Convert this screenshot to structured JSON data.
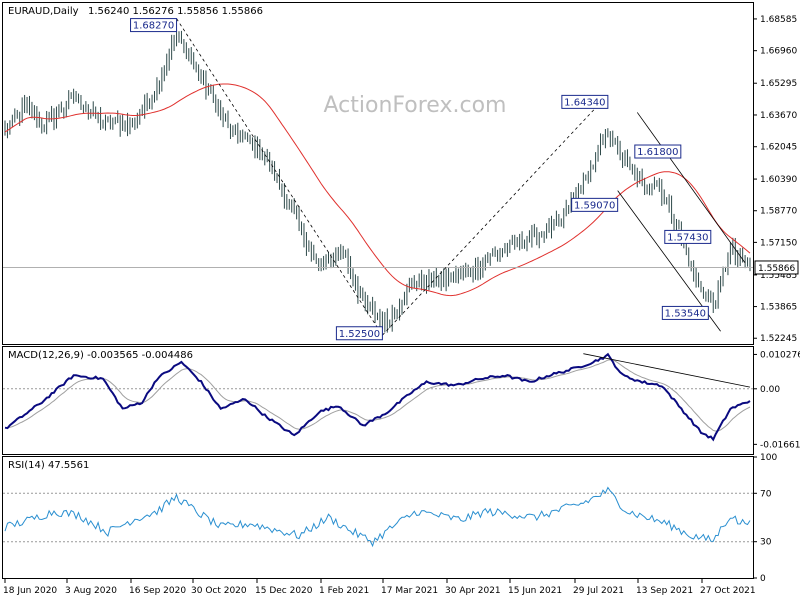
{
  "chart_data": [
    {
      "type": "candlestick",
      "header": "EURAUD,Daily",
      "ohlc_text": "1.56240 1.56276 1.55856 1.55866",
      "watermark": "ActionForex.com",
      "ylim": [
        1.5195,
        1.694
      ],
      "y_ticks": [
        "1.68585",
        "1.66960",
        "1.65295",
        "1.63670",
        "1.62045",
        "1.60390",
        "1.58770",
        "1.57150",
        "1.55485",
        "1.53865",
        "1.52245"
      ],
      "y_tick_values": [
        1.68585,
        1.6696,
        1.65295,
        1.6367,
        1.62045,
        1.6039,
        1.5877,
        1.5715,
        1.55485,
        1.53865,
        1.52245
      ],
      "x_ticks": [
        "18 Jun 2020",
        "3 Aug 2020",
        "16 Sep 2020",
        "30 Oct 2020",
        "15 Dec 2020",
        "1 Feb 2021",
        "17 Mar 2021",
        "30 Apr 2021",
        "15 Jun 2021",
        "29 Jul 2021",
        "13 Sep 2021",
        "27 Oct 2021"
      ],
      "last_price": "1.55866",
      "last_price_value": 1.55866,
      "anchors": [
        {
          "i": 0,
          "v": 1.628
        },
        {
          "i": 8,
          "v": 1.641
        },
        {
          "i": 16,
          "v": 1.631
        },
        {
          "i": 28,
          "v": 1.646
        },
        {
          "i": 40,
          "v": 1.633
        },
        {
          "i": 52,
          "v": 1.632
        },
        {
          "i": 62,
          "v": 1.651
        },
        {
          "i": 70,
          "v": 1.678
        },
        {
          "i": 78,
          "v": 1.66
        },
        {
          "i": 92,
          "v": 1.628
        },
        {
          "i": 104,
          "v": 1.62
        },
        {
          "i": 116,
          "v": 1.591
        },
        {
          "i": 128,
          "v": 1.558
        },
        {
          "i": 138,
          "v": 1.568
        },
        {
          "i": 146,
          "v": 1.54
        },
        {
          "i": 156,
          "v": 1.53
        },
        {
          "i": 166,
          "v": 1.551
        },
        {
          "i": 178,
          "v": 1.552
        },
        {
          "i": 190,
          "v": 1.556
        },
        {
          "i": 200,
          "v": 1.566
        },
        {
          "i": 214,
          "v": 1.574
        },
        {
          "i": 226,
          "v": 1.581
        },
        {
          "i": 238,
          "v": 1.606
        },
        {
          "i": 246,
          "v": 1.629
        },
        {
          "i": 252,
          "v": 1.614
        },
        {
          "i": 260,
          "v": 1.601
        },
        {
          "i": 266,
          "v": 1.602
        },
        {
          "i": 274,
          "v": 1.581
        },
        {
          "i": 282,
          "v": 1.552
        },
        {
          "i": 289,
          "v": 1.539
        },
        {
          "i": 296,
          "v": 1.568
        },
        {
          "i": 300,
          "v": 1.562
        },
        {
          "i": 304,
          "v": 1.5587
        }
      ],
      "annotations": [
        {
          "text": "1.68270",
          "i": 70,
          "v": 1.6827,
          "pos": "left"
        },
        {
          "text": "1.52500",
          "i": 154,
          "v": 1.525,
          "pos": "left"
        },
        {
          "text": "1.64340",
          "i": 246,
          "v": 1.6434,
          "pos": "left"
        },
        {
          "text": "1.61800",
          "i": 257,
          "v": 1.618,
          "pos": "right"
        },
        {
          "text": "1.59070",
          "i": 250,
          "v": 1.5907,
          "pos": "left"
        },
        {
          "text": "1.57430",
          "i": 288,
          "v": 1.5743,
          "pos": "left"
        },
        {
          "text": "1.53540",
          "i": 287,
          "v": 1.5354,
          "pos": "left"
        }
      ],
      "trendlines": [
        {
          "from": {
            "i": 70,
            "v": 1.686
          },
          "to": {
            "i": 154,
            "v": 1.524
          },
          "style": "dashed"
        },
        {
          "from": {
            "i": 154,
            "v": 1.524
          },
          "to": {
            "i": 246,
            "v": 1.647
          },
          "style": "dashed"
        },
        {
          "from": {
            "i": 258,
            "v": 1.638
          },
          "to": {
            "i": 302,
            "v": 1.561
          },
          "style": "solid"
        },
        {
          "from": {
            "i": 250,
            "v": 1.598
          },
          "to": {
            "i": 292,
            "v": 1.526
          },
          "style": "solid"
        }
      ]
    },
    {
      "type": "line",
      "header": "MACD(12,26,9) -0.003565 -0.004486",
      "y_ticks": [
        "0.010276",
        "0.00",
        "-0.016617"
      ],
      "y_tick_values": [
        0.010276,
        0.0,
        -0.016617
      ],
      "ylim": [
        -0.0195,
        0.0125
      ],
      "anchors": [
        {
          "i": 0,
          "v": -0.012
        },
        {
          "i": 15,
          "v": -0.004
        },
        {
          "i": 28,
          "v": 0.004
        },
        {
          "i": 40,
          "v": 0.003
        },
        {
          "i": 48,
          "v": -0.006
        },
        {
          "i": 56,
          "v": -0.004
        },
        {
          "i": 62,
          "v": 0.003
        },
        {
          "i": 72,
          "v": 0.008
        },
        {
          "i": 80,
          "v": 0.002
        },
        {
          "i": 88,
          "v": -0.006
        },
        {
          "i": 98,
          "v": -0.003
        },
        {
          "i": 106,
          "v": -0.008
        },
        {
          "i": 118,
          "v": -0.014
        },
        {
          "i": 128,
          "v": -0.007
        },
        {
          "i": 136,
          "v": -0.005
        },
        {
          "i": 146,
          "v": -0.011
        },
        {
          "i": 156,
          "v": -0.007
        },
        {
          "i": 166,
          "v": -0.001
        },
        {
          "i": 172,
          "v": 0.002
        },
        {
          "i": 184,
          "v": 0.001
        },
        {
          "i": 194,
          "v": 0.003
        },
        {
          "i": 204,
          "v": 0.004
        },
        {
          "i": 214,
          "v": 0.002
        },
        {
          "i": 222,
          "v": 0.004
        },
        {
          "i": 232,
          "v": 0.006
        },
        {
          "i": 240,
          "v": 0.008
        },
        {
          "i": 246,
          "v": 0.01
        },
        {
          "i": 252,
          "v": 0.004
        },
        {
          "i": 260,
          "v": 0.002
        },
        {
          "i": 268,
          "v": 0.001
        },
        {
          "i": 276,
          "v": -0.006
        },
        {
          "i": 284,
          "v": -0.013
        },
        {
          "i": 289,
          "v": -0.015
        },
        {
          "i": 296,
          "v": -0.006
        },
        {
          "i": 304,
          "v": -0.0036
        }
      ],
      "trendlines": [
        {
          "from": {
            "i": 236,
            "v": 0.0105
          },
          "to": {
            "i": 304,
            "v": 0.0005
          },
          "style": "solid"
        }
      ]
    },
    {
      "type": "line",
      "header": "RSI(14) 47.5561",
      "y_ticks": [
        "100",
        "70",
        "30",
        "0"
      ],
      "y_tick_values": [
        100,
        70,
        30,
        0
      ],
      "ylim": [
        0,
        100
      ],
      "levels": [
        70,
        30
      ],
      "anchors": [
        {
          "i": 0,
          "v": 42
        },
        {
          "i": 10,
          "v": 48
        },
        {
          "i": 20,
          "v": 55
        },
        {
          "i": 30,
          "v": 52
        },
        {
          "i": 42,
          "v": 38
        },
        {
          "i": 52,
          "v": 48
        },
        {
          "i": 62,
          "v": 55
        },
        {
          "i": 70,
          "v": 67
        },
        {
          "i": 78,
          "v": 55
        },
        {
          "i": 88,
          "v": 42
        },
        {
          "i": 100,
          "v": 45
        },
        {
          "i": 110,
          "v": 40
        },
        {
          "i": 120,
          "v": 35
        },
        {
          "i": 132,
          "v": 50
        },
        {
          "i": 142,
          "v": 38
        },
        {
          "i": 150,
          "v": 30
        },
        {
          "i": 160,
          "v": 45
        },
        {
          "i": 168,
          "v": 55
        },
        {
          "i": 176,
          "v": 52
        },
        {
          "i": 186,
          "v": 48
        },
        {
          "i": 196,
          "v": 55
        },
        {
          "i": 206,
          "v": 53
        },
        {
          "i": 216,
          "v": 50
        },
        {
          "i": 226,
          "v": 56
        },
        {
          "i": 236,
          "v": 62
        },
        {
          "i": 246,
          "v": 72
        },
        {
          "i": 254,
          "v": 55
        },
        {
          "i": 262,
          "v": 50
        },
        {
          "i": 270,
          "v": 45
        },
        {
          "i": 280,
          "v": 35
        },
        {
          "i": 289,
          "v": 31
        },
        {
          "i": 296,
          "v": 52
        },
        {
          "i": 300,
          "v": 45
        },
        {
          "i": 304,
          "v": 47.56
        }
      ]
    }
  ]
}
